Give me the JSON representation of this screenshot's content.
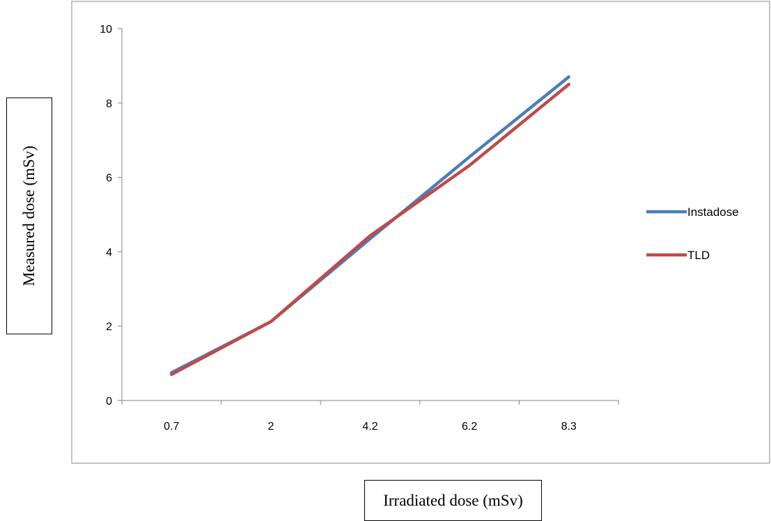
{
  "chart_data": {
    "type": "line",
    "categories": [
      "0.7",
      "2",
      "4.2",
      "6.2",
      "8.3"
    ],
    "series": [
      {
        "name": "Instadose",
        "values": [
          0.75,
          2.12,
          4.35,
          6.55,
          8.7
        ],
        "color": "#4a7ebb"
      },
      {
        "name": "TLD",
        "values": [
          0.7,
          2.12,
          4.43,
          6.32,
          8.5
        ],
        "color": "#be4b48"
      }
    ],
    "title": "",
    "xlabel": "Irradiated dose (mSv)",
    "ylabel": "Measured dose (mSv)",
    "ylim": [
      0,
      10
    ],
    "yticks": [
      "0",
      "2",
      "4",
      "6",
      "8",
      "10"
    ],
    "grid": false,
    "legend": "right"
  }
}
